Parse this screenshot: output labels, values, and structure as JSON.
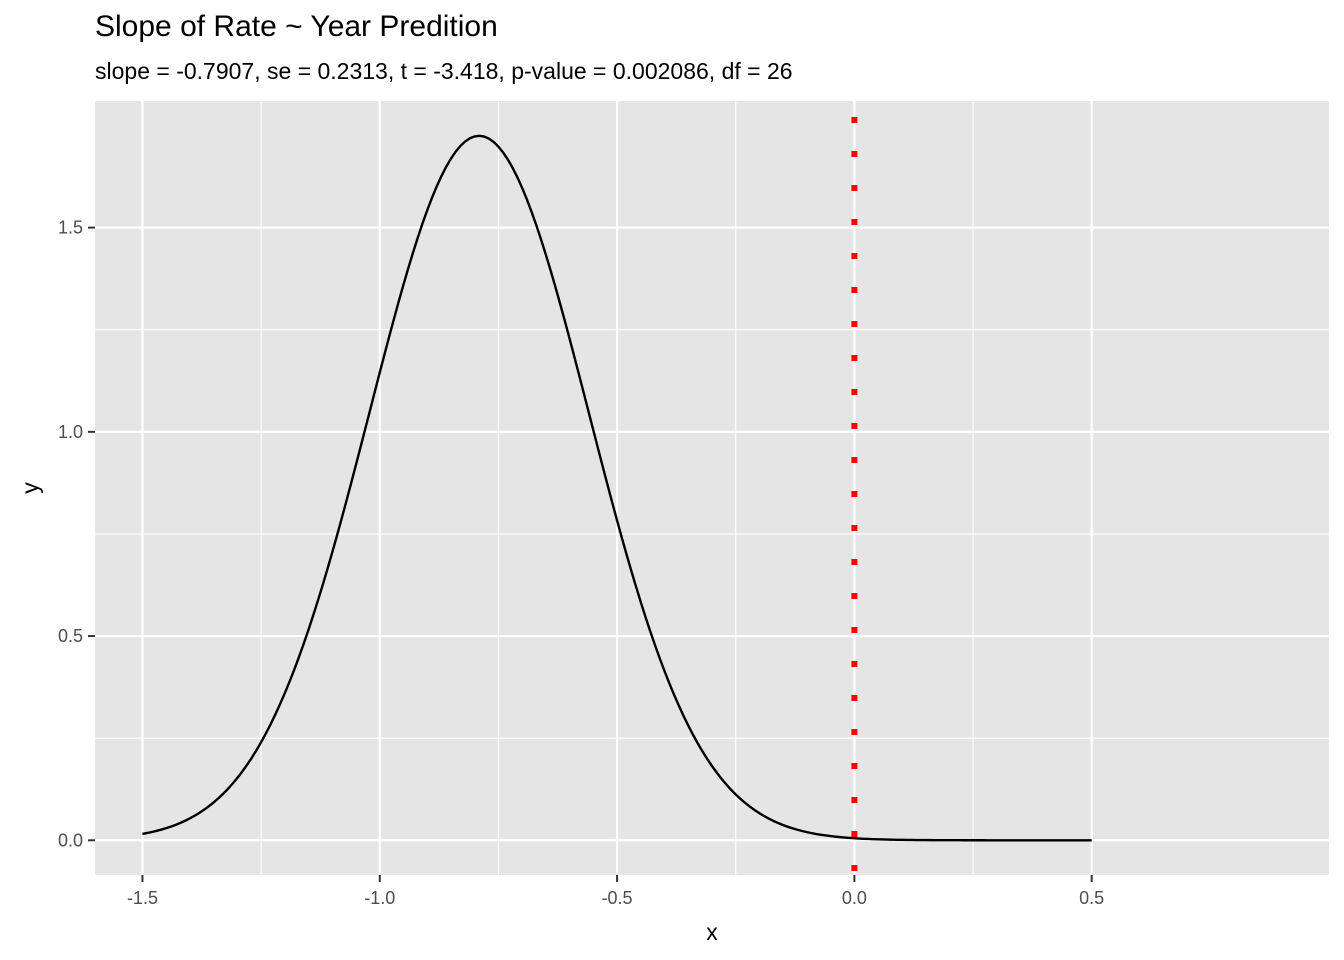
{
  "chart_data": {
    "type": "line",
    "title": "Slope of Rate ~ Year Predition",
    "subtitle": "slope = -0.7907, se = 0.2313, t = -3.418, p-value = 0.002086, df = 26",
    "xlabel": "x",
    "ylabel": "y",
    "xlim": [
      -1.6,
      1.0
    ],
    "ylim": [
      -0.085,
      1.81
    ],
    "x_ticks": [
      -1.5,
      -1.0,
      -0.5,
      0.0,
      0.5
    ],
    "x_tick_labels": [
      "-1.5",
      "-1.0",
      "-0.5",
      "0.0",
      "0.5"
    ],
    "y_ticks": [
      0.0,
      0.5,
      1.0,
      1.5
    ],
    "y_tick_labels": [
      "0.0",
      "0.5",
      "1.0",
      "1.5"
    ],
    "grid": true,
    "curve": {
      "distribution": "normal",
      "mean": -0.7907,
      "sd": 0.2313,
      "x_range": [
        -1.5,
        0.5
      ],
      "color": "#000000"
    },
    "reference_line": {
      "orientation": "vertical",
      "x": 0.0,
      "style": "dotted",
      "color": "#ff0000"
    },
    "colors": {
      "panel_background": "#e5e5e5",
      "grid": "#ffffff",
      "tick_label": "#4d4d4d"
    }
  }
}
